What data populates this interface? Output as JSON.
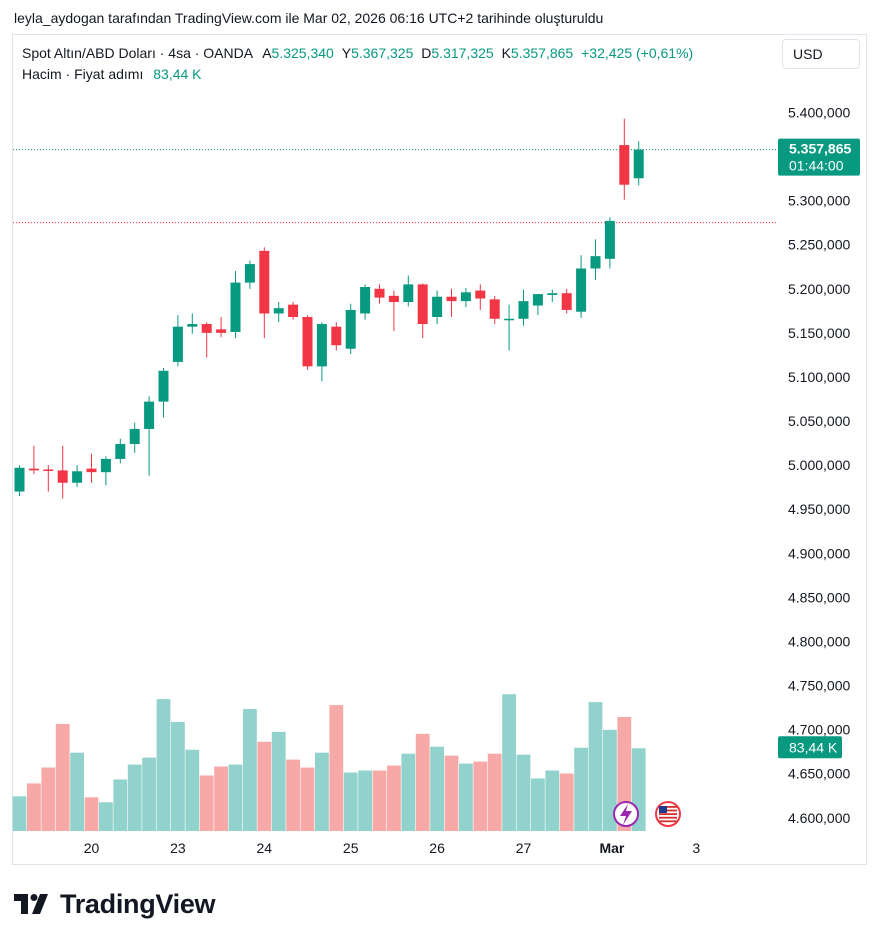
{
  "caption": "leyla_aydogan tarafından TradingView.com ile Mar 02, 2026 06:16 UTC+2 tarihinde oluşturuldu",
  "legend": {
    "symbol": "Spot Altın/ABD Doları · 4sa · OANDA",
    "open_label": "A",
    "open": "5.325,340",
    "high_label": "Y",
    "high": "5.367,325",
    "low_label": "D",
    "low": "5.317,325",
    "close_label": "K",
    "close": "5.357,865",
    "change": "+32,425 (+0,61%)",
    "volume_label": "Hacim · Fiyat adımı",
    "volume": "83,44 K"
  },
  "currency": "USD",
  "brand": "TradingView",
  "colors": {
    "up": "#089981",
    "down": "#f23645",
    "vol_up": "#92d2cc",
    "vol_down": "#f7a9a7",
    "badge": "#089981"
  },
  "badges": {
    "price": "5.357,865",
    "countdown": "01:44:00",
    "volume": "83,44 K"
  },
  "icons": [
    "lightning-icon",
    "us-flag-icon"
  ],
  "chart_data": {
    "type": "candlestick",
    "ylim": [
      4585000,
      5430000
    ],
    "y_ticks": [
      5400000,
      5300000,
      5250000,
      5200000,
      5150000,
      5100000,
      5050000,
      5000000,
      4950000,
      4900000,
      4850000,
      4800000,
      4750000,
      4700000,
      4650000,
      4600000
    ],
    "y_tick_labels": [
      "5.400,000",
      "5.300,000",
      "5.250,000",
      "5.200,000",
      "5.150,000",
      "5.100,000",
      "5.050,000",
      "5.000,000",
      "4.950,000",
      "4.900,000",
      "4.850,000",
      "4.800,000",
      "4.750,000",
      "4.700,000",
      "4.650,000",
      "4.600,000"
    ],
    "x_tick_labels": [
      {
        "label": "20",
        "index": 5
      },
      {
        "label": "23",
        "index": 11
      },
      {
        "label": "24",
        "index": 17
      },
      {
        "label": "25",
        "index": 23
      },
      {
        "label": "26",
        "index": 29
      },
      {
        "label": "27",
        "index": 35
      },
      {
        "label": "Mar",
        "index": 41
      },
      {
        "label": "3",
        "index": 47
      }
    ],
    "last_price": 5357865,
    "dotted_red_level": 5275000,
    "candles": [
      {
        "o": 4970000,
        "h": 5000000,
        "l": 4965000,
        "c": 4997000
      },
      {
        "o": 4996000,
        "h": 5022000,
        "l": 4990000,
        "c": 4994000
      },
      {
        "o": 4995000,
        "h": 5000000,
        "l": 4970000,
        "c": 4994000
      },
      {
        "o": 4994000,
        "h": 5022000,
        "l": 4962000,
        "c": 4980000
      },
      {
        "o": 4980000,
        "h": 5000000,
        "l": 4975000,
        "c": 4993000
      },
      {
        "o": 4996000,
        "h": 5013000,
        "l": 4980000,
        "c": 4992000
      },
      {
        "o": 4992000,
        "h": 5010000,
        "l": 4977000,
        "c": 5007000
      },
      {
        "o": 5007000,
        "h": 5030000,
        "l": 5002000,
        "c": 5024000
      },
      {
        "o": 5024000,
        "h": 5048000,
        "l": 5014000,
        "c": 5041000
      },
      {
        "o": 5041000,
        "h": 5078000,
        "l": 4988000,
        "c": 5072000
      },
      {
        "o": 5072000,
        "h": 5110000,
        "l": 5054000,
        "c": 5107000
      },
      {
        "o": 5117000,
        "h": 5170000,
        "l": 5112000,
        "c": 5157000
      },
      {
        "o": 5157000,
        "h": 5172000,
        "l": 5149000,
        "c": 5160000
      },
      {
        "o": 5160000,
        "h": 5162000,
        "l": 5122000,
        "c": 5150000
      },
      {
        "o": 5154000,
        "h": 5168000,
        "l": 5145000,
        "c": 5150000
      },
      {
        "o": 5151000,
        "h": 5220000,
        "l": 5144000,
        "c": 5207000
      },
      {
        "o": 5207000,
        "h": 5232000,
        "l": 5200000,
        "c": 5228000
      },
      {
        "o": 5243000,
        "h": 5247000,
        "l": 5144000,
        "c": 5172000
      },
      {
        "o": 5172000,
        "h": 5185000,
        "l": 5162000,
        "c": 5178000
      },
      {
        "o": 5182000,
        "h": 5185000,
        "l": 5165000,
        "c": 5168000
      },
      {
        "o": 5168000,
        "h": 5170000,
        "l": 5108000,
        "c": 5112000
      },
      {
        "o": 5112000,
        "h": 5162000,
        "l": 5095000,
        "c": 5160000
      },
      {
        "o": 5157000,
        "h": 5162000,
        "l": 5130000,
        "c": 5136000
      },
      {
        "o": 5132000,
        "h": 5183000,
        "l": 5126000,
        "c": 5176000
      },
      {
        "o": 5172000,
        "h": 5205000,
        "l": 5165000,
        "c": 5202000
      },
      {
        "o": 5200000,
        "h": 5205000,
        "l": 5183000,
        "c": 5190000
      },
      {
        "o": 5192000,
        "h": 5198000,
        "l": 5152000,
        "c": 5185000
      },
      {
        "o": 5185000,
        "h": 5215000,
        "l": 5180000,
        "c": 5205000
      },
      {
        "o": 5205000,
        "h": 5206000,
        "l": 5144000,
        "c": 5160000
      },
      {
        "o": 5168000,
        "h": 5198000,
        "l": 5160000,
        "c": 5191000
      },
      {
        "o": 5191000,
        "h": 5200000,
        "l": 5168000,
        "c": 5186000
      },
      {
        "o": 5186000,
        "h": 5201000,
        "l": 5179000,
        "c": 5196000
      },
      {
        "o": 5198000,
        "h": 5205000,
        "l": 5176000,
        "c": 5189000
      },
      {
        "o": 5188000,
        "h": 5192000,
        "l": 5160000,
        "c": 5166000
      },
      {
        "o": 5166000,
        "h": 5182000,
        "l": 5130000,
        "c": 5166000
      },
      {
        "o": 5166000,
        "h": 5199000,
        "l": 5158000,
        "c": 5186000
      },
      {
        "o": 5181000,
        "h": 5194000,
        "l": 5170000,
        "c": 5194000
      },
      {
        "o": 5193000,
        "h": 5199000,
        "l": 5185000,
        "c": 5195000
      },
      {
        "o": 5195000,
        "h": 5200000,
        "l": 5172000,
        "c": 5176000
      },
      {
        "o": 5174000,
        "h": 5238000,
        "l": 5167000,
        "c": 5223000
      },
      {
        "o": 5223000,
        "h": 5256000,
        "l": 5210000,
        "c": 5237000
      },
      {
        "o": 5234000,
        "h": 5281000,
        "l": 5223000,
        "c": 5277000
      },
      {
        "o": 5363000,
        "h": 5393000,
        "l": 5301000,
        "c": 5318000
      },
      {
        "o": 5325340,
        "h": 5367325,
        "l": 5317325,
        "c": 5357865
      }
    ],
    "volume_ylim": [
      0,
      235
    ],
    "volume": [
      35,
      48,
      64,
      108,
      79,
      34,
      29,
      52,
      67,
      74,
      133,
      110,
      82,
      56,
      65,
      67,
      123,
      90,
      100,
      72,
      64,
      79,
      127,
      59,
      61,
      61,
      66,
      78,
      98,
      85,
      76,
      68,
      70,
      78,
      138,
      77,
      53,
      61,
      58,
      84,
      130,
      102,
      115,
      83.44
    ]
  }
}
